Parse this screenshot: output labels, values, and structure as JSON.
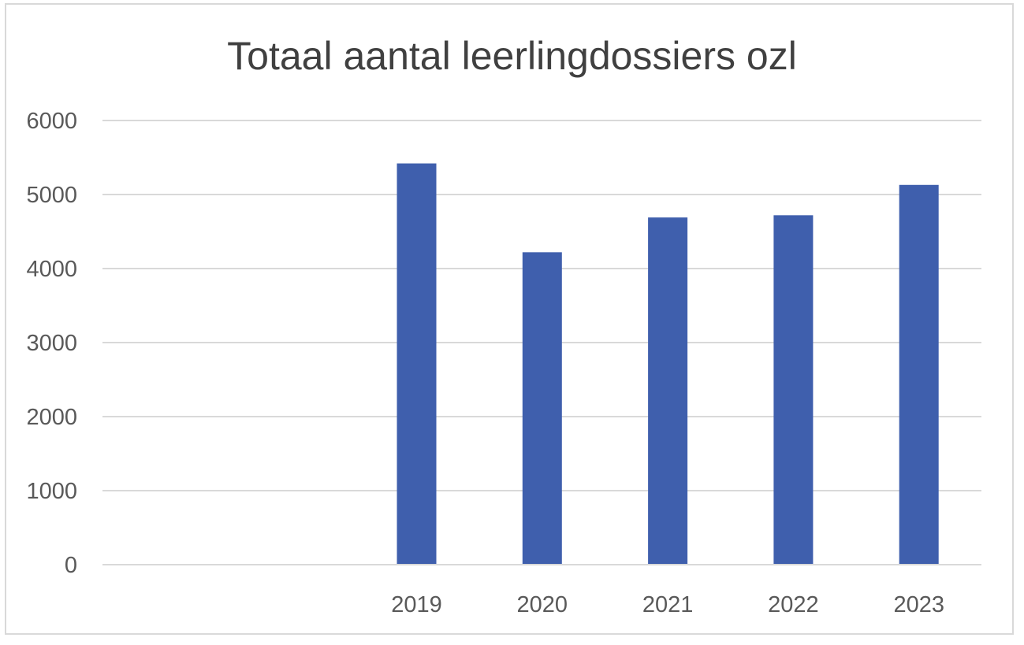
{
  "chart_data": {
    "type": "bar",
    "title": "Totaal aantal leerlingdossiers ozl",
    "xlabel": "",
    "ylabel": "",
    "categories": [
      "",
      "",
      "2019",
      "2020",
      "2021",
      "2022",
      "2023"
    ],
    "values": [
      null,
      null,
      5420,
      4220,
      4690,
      4720,
      5130
    ],
    "ylim": [
      0,
      6000
    ],
    "yticks": [
      "0",
      "1000",
      "2000",
      "3000",
      "4000",
      "5000",
      "6000"
    ],
    "grid": true,
    "legend": "none",
    "colors": {
      "bar": "#3F5FAD",
      "grid": "#d9d9d9",
      "axis": "#d9d9d9",
      "text": "#595959",
      "title": "#404040"
    }
  }
}
